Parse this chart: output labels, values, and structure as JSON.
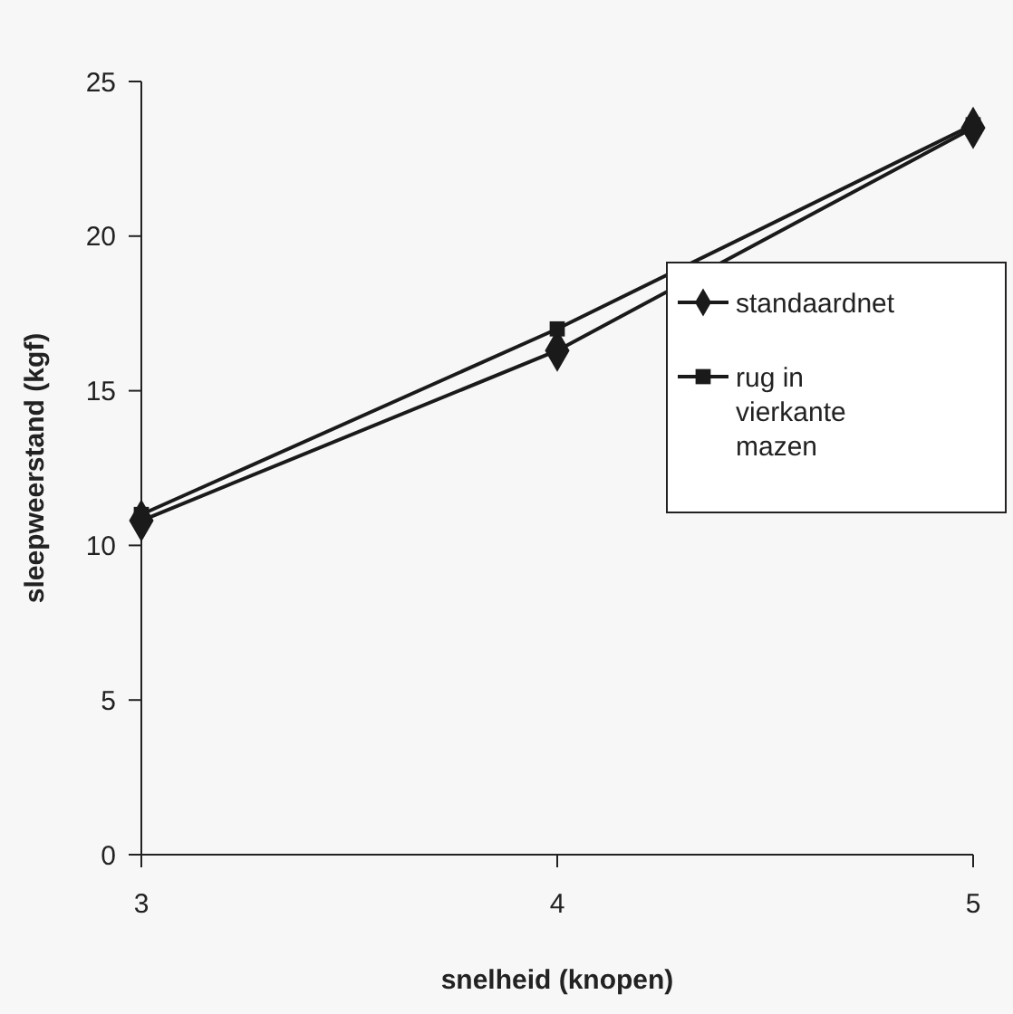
{
  "chart_data": {
    "type": "line",
    "xlabel": "snelheid (knopen)",
    "ylabel": "sleepweerstand (kgf)",
    "x": [
      3,
      4,
      5
    ],
    "xlim": [
      3,
      5
    ],
    "xticks": [
      3,
      4,
      5
    ],
    "ylim": [
      0,
      25
    ],
    "yticks": [
      0,
      5,
      10,
      15,
      20,
      25
    ],
    "grid": false,
    "legend": "right",
    "line_style": "solid",
    "series": [
      {
        "name": "standaardnet",
        "color": "#1a1a1a",
        "marker": "diamond",
        "values": [
          10.8,
          16.3,
          23.5
        ]
      },
      {
        "name": "rug in vierkante mazen",
        "color": "#1a1a1a",
        "marker": "square",
        "values": [
          11.0,
          17.0,
          23.6
        ]
      }
    ]
  }
}
